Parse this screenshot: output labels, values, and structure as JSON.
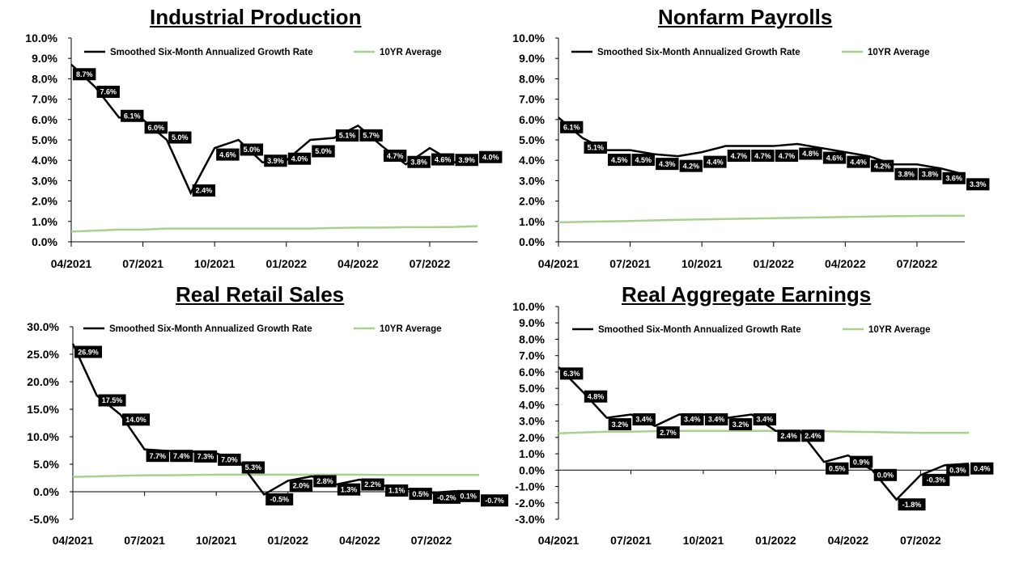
{
  "colors": {
    "series_main": "#000000",
    "series_avg": "#a9d18e",
    "label_bg": "#000000",
    "label_fg": "#ffffff"
  },
  "chart_data": [
    {
      "type": "line",
      "title": "Industrial Production",
      "xlabel": "",
      "ylabel": "",
      "x": [
        "04/2021",
        "05/2021",
        "06/2021",
        "07/2021",
        "08/2021",
        "09/2021",
        "10/2021",
        "11/2021",
        "12/2021",
        "01/2022",
        "02/2022",
        "03/2022",
        "04/2022",
        "05/2022",
        "06/2022",
        "07/2022",
        "08/2022",
        "09/2022"
      ],
      "x_ticks": [
        "04/2021",
        "07/2021",
        "10/2021",
        "01/2022",
        "04/2022",
        "07/2022"
      ],
      "ylim": [
        0,
        10
      ],
      "y_ticks": [
        "0.0%",
        "1.0%",
        "2.0%",
        "3.0%",
        "4.0%",
        "5.0%",
        "6.0%",
        "7.0%",
        "8.0%",
        "9.0%",
        "10.0%"
      ],
      "series": [
        {
          "name": "Smoothed Six-Month Annualized Growth Rate",
          "values": [
            8.7,
            7.6,
            6.1,
            6.0,
            5.0,
            2.4,
            4.6,
            5.0,
            3.9,
            4.0,
            5.0,
            5.1,
            5.7,
            4.7,
            3.8,
            4.6,
            3.9,
            4.0
          ],
          "labels": [
            "8.7%",
            "7.6%",
            "6.1%",
            "6.0%",
            "5.0%",
            "2.4%",
            "4.6%",
            "5.0%",
            "3.9%",
            "4.0%",
            "5.0%",
            "5.1%",
            "5.7%",
            "4.7%",
            "3.8%",
            "4.6%",
            "3.9%",
            "4.0%"
          ]
        },
        {
          "name": "10YR Average",
          "values": [
            0.5,
            0.55,
            0.6,
            0.6,
            0.65,
            0.65,
            0.65,
            0.65,
            0.65,
            0.65,
            0.65,
            0.68,
            0.7,
            0.7,
            0.72,
            0.72,
            0.73,
            0.77
          ]
        }
      ],
      "legend_position": "top"
    },
    {
      "type": "line",
      "title": "Nonfarm Payrolls",
      "xlabel": "",
      "ylabel": "",
      "x": [
        "04/2021",
        "05/2021",
        "06/2021",
        "07/2021",
        "08/2021",
        "09/2021",
        "10/2021",
        "11/2021",
        "12/2021",
        "01/2022",
        "02/2022",
        "03/2022",
        "04/2022",
        "05/2022",
        "06/2022",
        "07/2022",
        "08/2022",
        "09/2022"
      ],
      "x_ticks": [
        "04/2021",
        "07/2021",
        "10/2021",
        "01/2022",
        "04/2022",
        "07/2022"
      ],
      "ylim": [
        0,
        10
      ],
      "y_ticks": [
        "0.0%",
        "1.0%",
        "2.0%",
        "3.0%",
        "4.0%",
        "5.0%",
        "6.0%",
        "7.0%",
        "8.0%",
        "9.0%",
        "10.0%"
      ],
      "series": [
        {
          "name": "Smoothed Six-Month Annualized Growth Rate",
          "values": [
            6.1,
            5.1,
            4.5,
            4.5,
            4.3,
            4.2,
            4.4,
            4.7,
            4.7,
            4.7,
            4.8,
            4.6,
            4.4,
            4.2,
            3.8,
            3.8,
            3.6,
            3.3
          ],
          "labels": [
            "6.1%",
            "5.1%",
            "4.5%",
            "4.5%",
            "4.3%",
            "4.2%",
            "4.4%",
            "4.7%",
            "4.7%",
            "4.7%",
            "4.8%",
            "4.6%",
            "4.4%",
            "4.2%",
            "3.8%",
            "3.8%",
            "3.6%",
            "3.3%"
          ]
        },
        {
          "name": "10YR Average",
          "values": [
            0.95,
            0.98,
            1.0,
            1.02,
            1.05,
            1.08,
            1.1,
            1.12,
            1.14,
            1.16,
            1.18,
            1.2,
            1.22,
            1.24,
            1.26,
            1.27,
            1.28,
            1.28
          ]
        }
      ],
      "legend_position": "top"
    },
    {
      "type": "line",
      "title": "Real Retail Sales",
      "xlabel": "",
      "ylabel": "",
      "x": [
        "04/2021",
        "05/2021",
        "06/2021",
        "07/2021",
        "08/2021",
        "09/2021",
        "10/2021",
        "11/2021",
        "12/2021",
        "01/2022",
        "02/2022",
        "03/2022",
        "04/2022",
        "05/2022",
        "06/2022",
        "07/2022",
        "08/2022",
        "09/2022"
      ],
      "x_ticks": [
        "04/2021",
        "07/2021",
        "10/2021",
        "01/2022",
        "04/2022",
        "07/2022"
      ],
      "ylim": [
        -5,
        30
      ],
      "y_ticks": [
        "-5.0%",
        "0.0%",
        "5.0%",
        "10.0%",
        "15.0%",
        "20.0%",
        "25.0%",
        "30.0%"
      ],
      "series": [
        {
          "name": "Smoothed Six-Month Annualized Growth Rate",
          "values": [
            26.9,
            17.5,
            14.0,
            7.7,
            7.4,
            7.3,
            7.0,
            5.3,
            -0.5,
            2.0,
            2.8,
            1.3,
            2.2,
            1.1,
            0.5,
            -0.2,
            0.1,
            -0.7
          ],
          "labels": [
            "26.9%",
            "17.5%",
            "14.0%",
            "7.7%",
            "7.4%",
            "7.3%",
            "7.0%",
            "5.3%",
            "-0.5%",
            "2.0%",
            "2.8%",
            "1.3%",
            "2.2%",
            "1.1%",
            "0.5%",
            "-0.2%",
            "0.1%",
            "-0.7%"
          ]
        },
        {
          "name": "10YR Average",
          "values": [
            2.7,
            2.8,
            2.9,
            3.0,
            3.0,
            3.05,
            3.1,
            3.1,
            3.1,
            3.1,
            3.1,
            3.1,
            3.1,
            3.05,
            3.05,
            3.05,
            3.05,
            3.05
          ]
        }
      ],
      "legend_position": "top"
    },
    {
      "type": "line",
      "title": "Real Aggregate Earnings",
      "xlabel": "",
      "ylabel": "",
      "x": [
        "04/2021",
        "05/2021",
        "06/2021",
        "07/2021",
        "08/2021",
        "09/2021",
        "10/2021",
        "11/2021",
        "12/2021",
        "01/2022",
        "02/2022",
        "03/2022",
        "04/2022",
        "05/2022",
        "06/2022",
        "07/2022",
        "08/2022",
        "09/2022"
      ],
      "x_ticks": [
        "04/2021",
        "07/2021",
        "10/2021",
        "01/2022",
        "04/2022",
        "07/2022"
      ],
      "ylim": [
        -3,
        10
      ],
      "y_ticks": [
        "-3.0%",
        "-2.0%",
        "-1.0%",
        "0.0%",
        "1.0%",
        "2.0%",
        "3.0%",
        "4.0%",
        "5.0%",
        "6.0%",
        "7.0%",
        "8.0%",
        "9.0%",
        "10.0%"
      ],
      "series": [
        {
          "name": "Smoothed Six-Month Annualized Growth Rate",
          "values": [
            6.3,
            4.8,
            3.2,
            3.4,
            2.7,
            3.4,
            3.4,
            3.2,
            3.4,
            2.4,
            2.4,
            0.5,
            0.9,
            0.0,
            -1.8,
            -0.3,
            0.3,
            0.4
          ],
          "labels": [
            "6.3%",
            "4.8%",
            "3.2%",
            "3.4%",
            "2.7%",
            "3.4%",
            "3.4%",
            "3.2%",
            "3.4%",
            "2.4%",
            "2.4%",
            "0.5%",
            "0.9%",
            "0.0%",
            "-1.8%",
            "-0.3%",
            "0.3%",
            "0.4%"
          ]
        },
        {
          "name": "10YR Average",
          "values": [
            2.25,
            2.3,
            2.35,
            2.35,
            2.38,
            2.4,
            2.4,
            2.4,
            2.4,
            2.4,
            2.4,
            2.38,
            2.35,
            2.33,
            2.3,
            2.28,
            2.28,
            2.28
          ]
        }
      ],
      "legend_position": "top"
    }
  ]
}
